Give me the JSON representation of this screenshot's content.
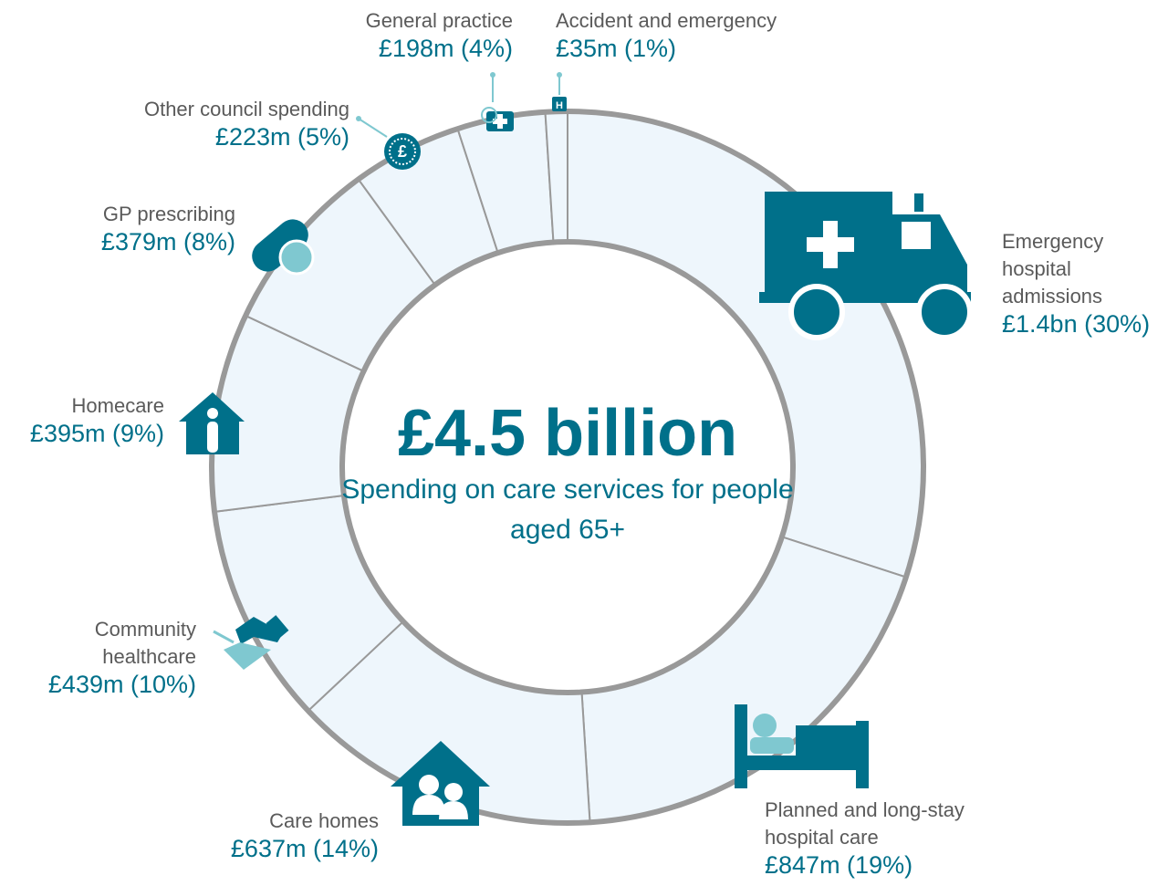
{
  "chart_data": {
    "type": "donut",
    "title": "£4.5 billion",
    "subtitle": "Spending on care services for people aged 65+",
    "categories": [
      "Emergency hospital admissions",
      "Planned and long-stay hospital care",
      "Care homes",
      "Community healthcare",
      "Homecare",
      "GP prescribing",
      "Other council spending",
      "General practice",
      "Accident and emergency"
    ],
    "values": [
      30,
      19,
      14,
      10,
      9,
      8,
      5,
      4,
      1
    ],
    "value_labels": [
      "£1.4bn (30%)",
      "£847m (19%)",
      "£637m (14%)",
      "£439m (10%)",
      "£395m (9%)",
      "£379m (8%)",
      "£223m (5%)",
      "£198m (4%)",
      "£35m (1%)"
    ],
    "color": "#eef6fc"
  }
}
